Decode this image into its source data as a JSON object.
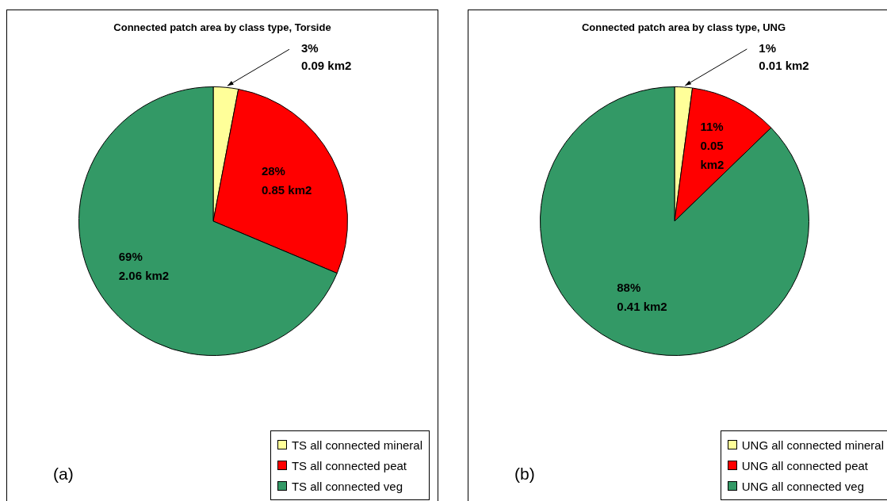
{
  "chart_data": [
    {
      "type": "pie",
      "title": "Connected patch area by class type, Torside",
      "categories": [
        "TS all connected mineral",
        "TS all connected peat",
        "TS all connected veg"
      ],
      "values": [
        0.09,
        0.85,
        2.06
      ],
      "colors": [
        "#ffff99",
        "#ff0000",
        "#339966"
      ],
      "value_labels": [
        "3%\n0.09 km2",
        "28%\n0.85 km2",
        "69%\n2.06 km2"
      ],
      "legend": "bottom right",
      "annotations": [
        "(a)"
      ]
    },
    {
      "type": "pie",
      "title": "Connected patch area by class type, UNG",
      "categories": [
        "UNG all connected mineral",
        "UNG all connected peat",
        "UNG all connected veg"
      ],
      "values": [
        0.01,
        0.05,
        0.41
      ],
      "colors": [
        "#ffff99",
        "#ff0000",
        "#339966"
      ],
      "value_labels": [
        "1%\n0.01 km2",
        "11%\n0.05\nkm2",
        "88%\n0.41 km2"
      ],
      "legend": "bottom right",
      "annotations": [
        "(b)"
      ]
    }
  ]
}
